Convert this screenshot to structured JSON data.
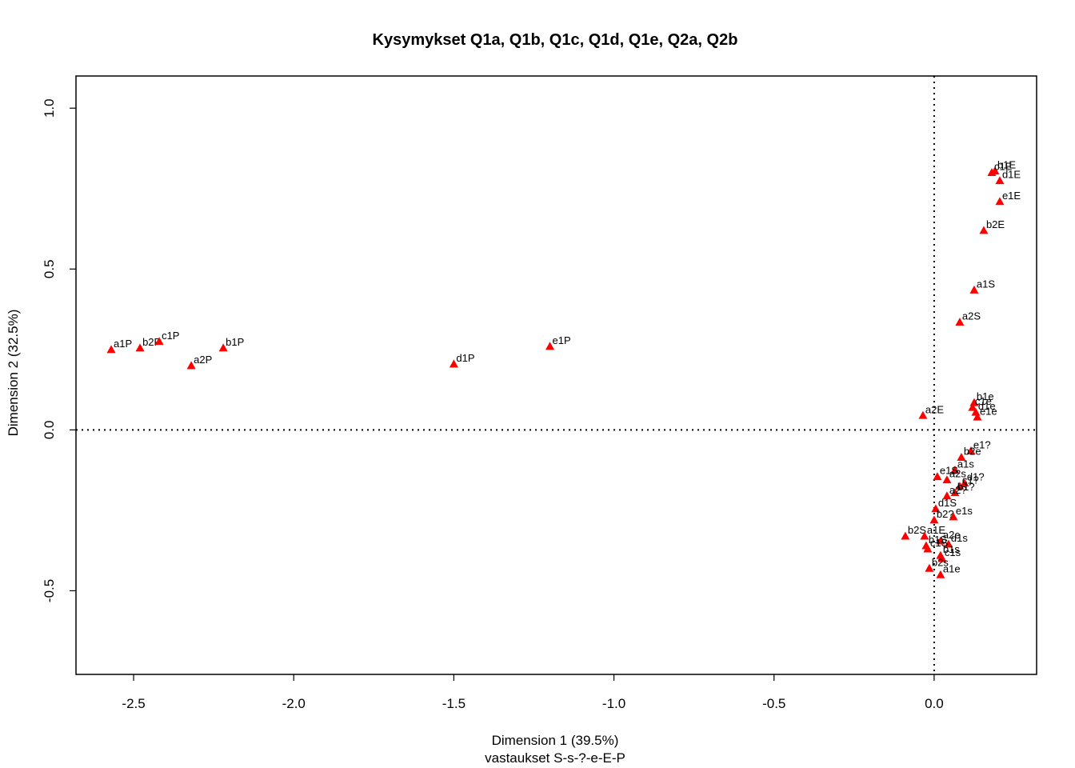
{
  "chart_data": {
    "type": "scatter",
    "title": "Kysymykset Q1a, Q1b, Q1c, Q1d, Q1e, Q2a, Q2b",
    "xlabel": "Dimension 1 (39.5%)",
    "xlabel2": "vastaukset S-s-?-e-E-P",
    "ylabel": "Dimension 2 (32.5%)",
    "xlim": [
      -2.68,
      0.32
    ],
    "ylim": [
      -0.76,
      1.1
    ],
    "xticks": [
      -2.5,
      -2.0,
      -1.5,
      -1.0,
      -0.5,
      0.0
    ],
    "xtick_labels": [
      "-2.5",
      "-2.0",
      "-1.5",
      "-1.0",
      "-0.5",
      "0.0"
    ],
    "yticks": [
      -0.5,
      0.0,
      0.5,
      1.0
    ],
    "ytick_labels": [
      "-0.5",
      "0.0",
      "0.5",
      "1.0"
    ],
    "reference_lines": {
      "x": 0,
      "y": 0,
      "style": "dotted"
    },
    "marker": {
      "shape": "triangle",
      "color": "#ff0000"
    },
    "points": [
      {
        "label": "a1P",
        "x": -2.57,
        "y": 0.25
      },
      {
        "label": "b2P",
        "x": -2.48,
        "y": 0.255
      },
      {
        "label": "c1P",
        "x": -2.42,
        "y": 0.275
      },
      {
        "label": "a2P",
        "x": -2.32,
        "y": 0.2
      },
      {
        "label": "b1P",
        "x": -2.22,
        "y": 0.255
      },
      {
        "label": "d1P",
        "x": -1.5,
        "y": 0.205
      },
      {
        "label": "e1P",
        "x": -1.2,
        "y": 0.26
      },
      {
        "label": "b1E",
        "x": 0.19,
        "y": 0.805
      },
      {
        "label": "c1E",
        "x": 0.18,
        "y": 0.8
      },
      {
        "label": "d1E",
        "x": 0.205,
        "y": 0.775
      },
      {
        "label": "e1E",
        "x": 0.205,
        "y": 0.71
      },
      {
        "label": "b2E",
        "x": 0.155,
        "y": 0.62
      },
      {
        "label": "a1S",
        "x": 0.125,
        "y": 0.435
      },
      {
        "label": "a2S",
        "x": 0.08,
        "y": 0.335
      },
      {
        "label": "b1e",
        "x": 0.125,
        "y": 0.085
      },
      {
        "label": "c1e",
        "x": 0.12,
        "y": 0.07
      },
      {
        "label": "d1e",
        "x": 0.13,
        "y": 0.055
      },
      {
        "label": "e1e",
        "x": 0.135,
        "y": 0.04
      },
      {
        "label": "a2E",
        "x": -0.035,
        "y": 0.045
      },
      {
        "label": "e1?",
        "x": 0.115,
        "y": -0.065
      },
      {
        "label": "b2e",
        "x": 0.085,
        "y": -0.085
      },
      {
        "label": "a1s",
        "x": 0.065,
        "y": -0.125
      },
      {
        "label": "e1S",
        "x": 0.01,
        "y": -0.145
      },
      {
        "label": "a2s",
        "x": 0.04,
        "y": -0.155
      },
      {
        "label": "d1?",
        "x": 0.095,
        "y": -0.165
      },
      {
        "label": "c1?",
        "x": 0.08,
        "y": -0.175
      },
      {
        "label": "b1?",
        "x": 0.065,
        "y": -0.195
      },
      {
        "label": "a2?",
        "x": 0.04,
        "y": -0.205
      },
      {
        "label": "d1S",
        "x": 0.005,
        "y": -0.245
      },
      {
        "label": "e1s",
        "x": 0.06,
        "y": -0.27
      },
      {
        "label": "b2?",
        "x": 0.0,
        "y": -0.28
      },
      {
        "label": "b2S",
        "x": -0.09,
        "y": -0.33
      },
      {
        "label": "a1E",
        "x": -0.03,
        "y": -0.33
      },
      {
        "label": "a2e",
        "x": 0.02,
        "y": -0.345
      },
      {
        "label": "d1s",
        "x": 0.045,
        "y": -0.355
      },
      {
        "label": "b1S",
        "x": -0.025,
        "y": -0.36
      },
      {
        "label": "c1S",
        "x": -0.02,
        "y": -0.37
      },
      {
        "label": "b1s",
        "x": 0.02,
        "y": -0.39
      },
      {
        "label": "c1s",
        "x": 0.025,
        "y": -0.4
      },
      {
        "label": "b2s",
        "x": -0.015,
        "y": -0.43
      },
      {
        "label": "a1e",
        "x": 0.02,
        "y": -0.45
      }
    ]
  }
}
